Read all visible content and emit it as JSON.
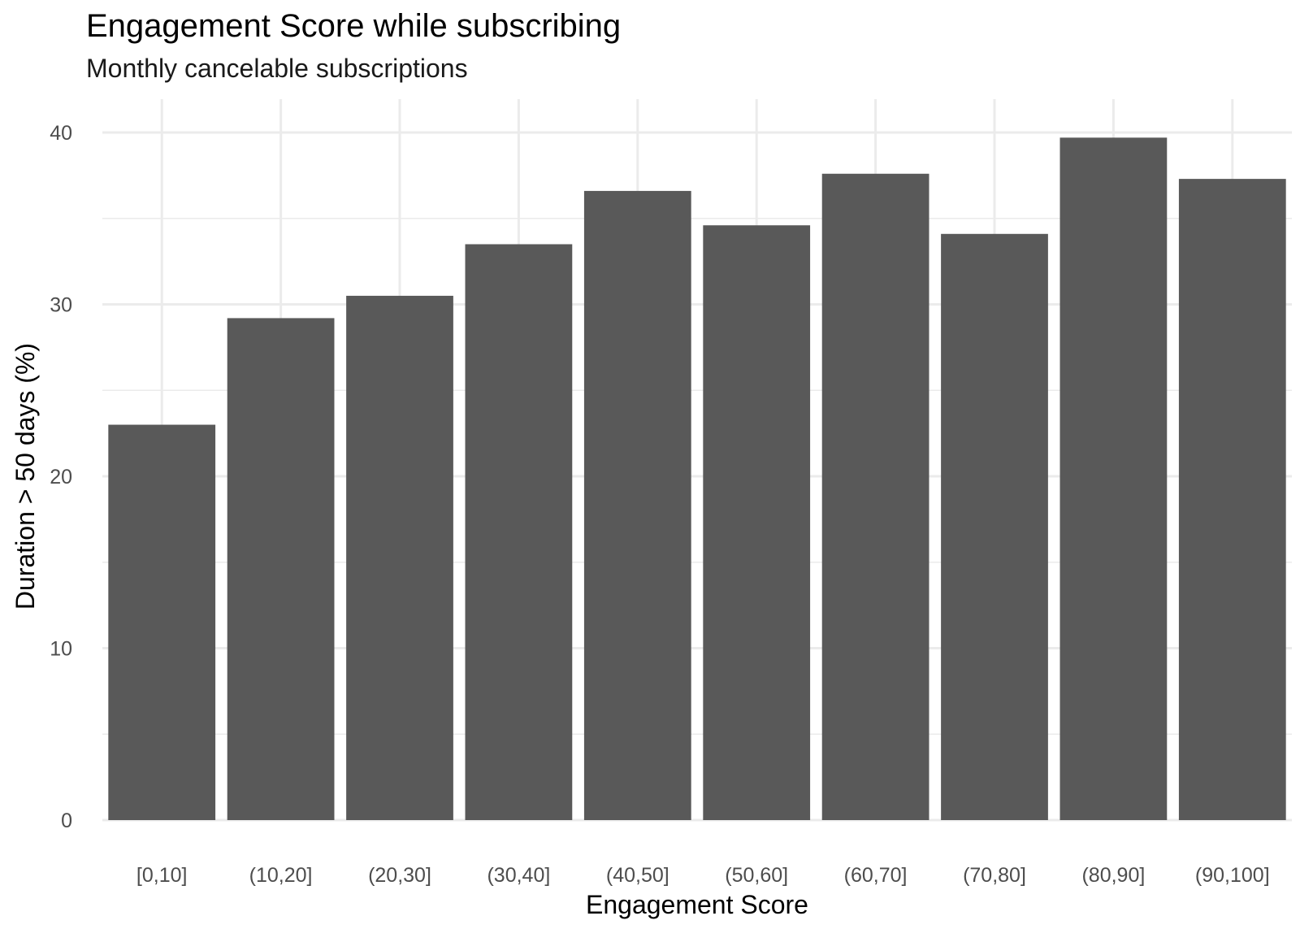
{
  "chart_data": {
    "type": "bar",
    "title": "Engagement Score while subscribing",
    "subtitle": "Monthly cancelable subscriptions",
    "xlabel": "Engagement Score",
    "ylabel": "Duration > 50 days (%)",
    "categories": [
      "[0,10]",
      "(10,20]",
      "(20,30]",
      "(30,40]",
      "(40,50]",
      "(50,60]",
      "(60,70]",
      "(70,80]",
      "(80,90]",
      "(90,100]"
    ],
    "values": [
      23.0,
      29.2,
      30.5,
      33.5,
      36.6,
      34.6,
      37.6,
      34.1,
      39.7,
      37.3
    ],
    "ylim": [
      0,
      41.8
    ],
    "yticks": [
      0,
      10,
      20,
      30,
      40
    ],
    "grid": true,
    "bar_color": "#595959",
    "grid_color": "#ebebeb"
  }
}
